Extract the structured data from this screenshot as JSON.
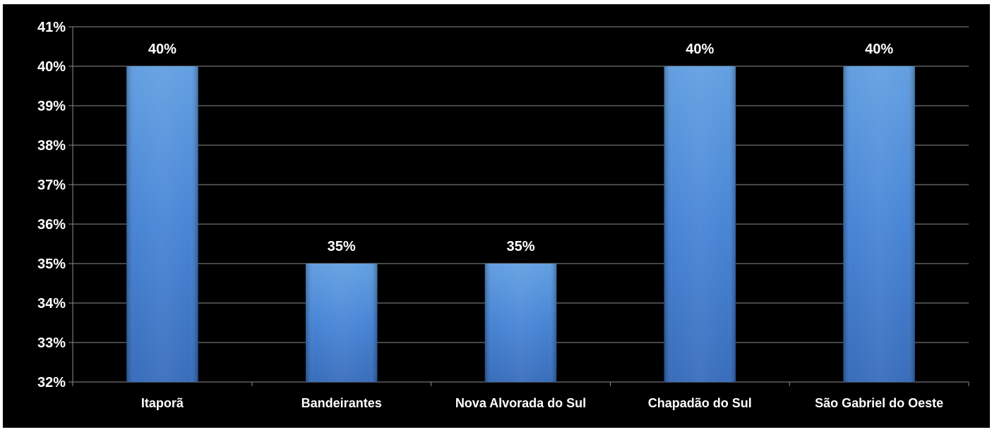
{
  "chart_data": {
    "type": "bar",
    "categories": [
      "Itaporã",
      "Bandeirantes",
      "Nova Alvorada do Sul",
      "Chapadão do Sul",
      "São Gabriel do Oeste"
    ],
    "values": [
      40,
      35,
      35,
      40,
      40
    ],
    "value_labels": [
      "40%",
      "35%",
      "35%",
      "40%",
      "40%"
    ],
    "ylim": [
      32,
      41
    ],
    "yticks": [
      32,
      33,
      34,
      35,
      36,
      37,
      38,
      39,
      40,
      41
    ],
    "ytick_labels": [
      "32%",
      "33%",
      "34%",
      "35%",
      "36%",
      "37%",
      "38%",
      "39%",
      "40%",
      "41%"
    ],
    "title": "",
    "xlabel": "",
    "ylabel": "",
    "grid": true,
    "legend": "none",
    "colors": {
      "background": "#000000",
      "bar_top": "#5b9be0",
      "bar_mid": "#3f7fd4",
      "bar_bottom": "#2e66b8",
      "gridline": "#8c8c8c",
      "text": "#ffffff"
    }
  }
}
